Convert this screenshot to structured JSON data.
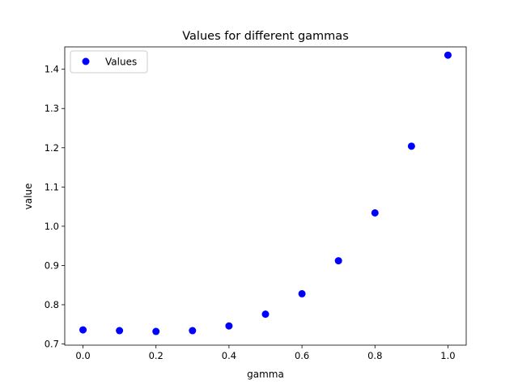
{
  "chart_data": {
    "type": "scatter",
    "title": "Values for different gammas",
    "xlabel": "gamma",
    "ylabel": "value",
    "xlim": [
      -0.05,
      1.05
    ],
    "ylim": [
      0.697,
      1.457
    ],
    "xticks": [
      0.0,
      0.2,
      0.4,
      0.6,
      0.8,
      1.0
    ],
    "xtick_labels": [
      "0.0",
      "0.2",
      "0.4",
      "0.6",
      "0.8",
      "1.0"
    ],
    "yticks": [
      0.7,
      0.8,
      0.9,
      1.0,
      1.1,
      1.2,
      1.3,
      1.4
    ],
    "ytick_labels": [
      "0.7",
      "0.8",
      "0.9",
      "1.0",
      "1.1",
      "1.2",
      "1.3",
      "1.4"
    ],
    "grid": false,
    "legend_position": "top-left",
    "series": [
      {
        "name": "Values",
        "color": "#0000ff",
        "marker": "circle",
        "x": [
          0.0,
          0.1,
          0.2,
          0.3,
          0.4,
          0.5,
          0.6,
          0.7,
          0.8,
          0.9,
          1.0
        ],
        "y": [
          0.736,
          0.734,
          0.732,
          0.734,
          0.746,
          0.776,
          0.828,
          0.912,
          1.034,
          1.204,
          1.436
        ]
      }
    ]
  }
}
